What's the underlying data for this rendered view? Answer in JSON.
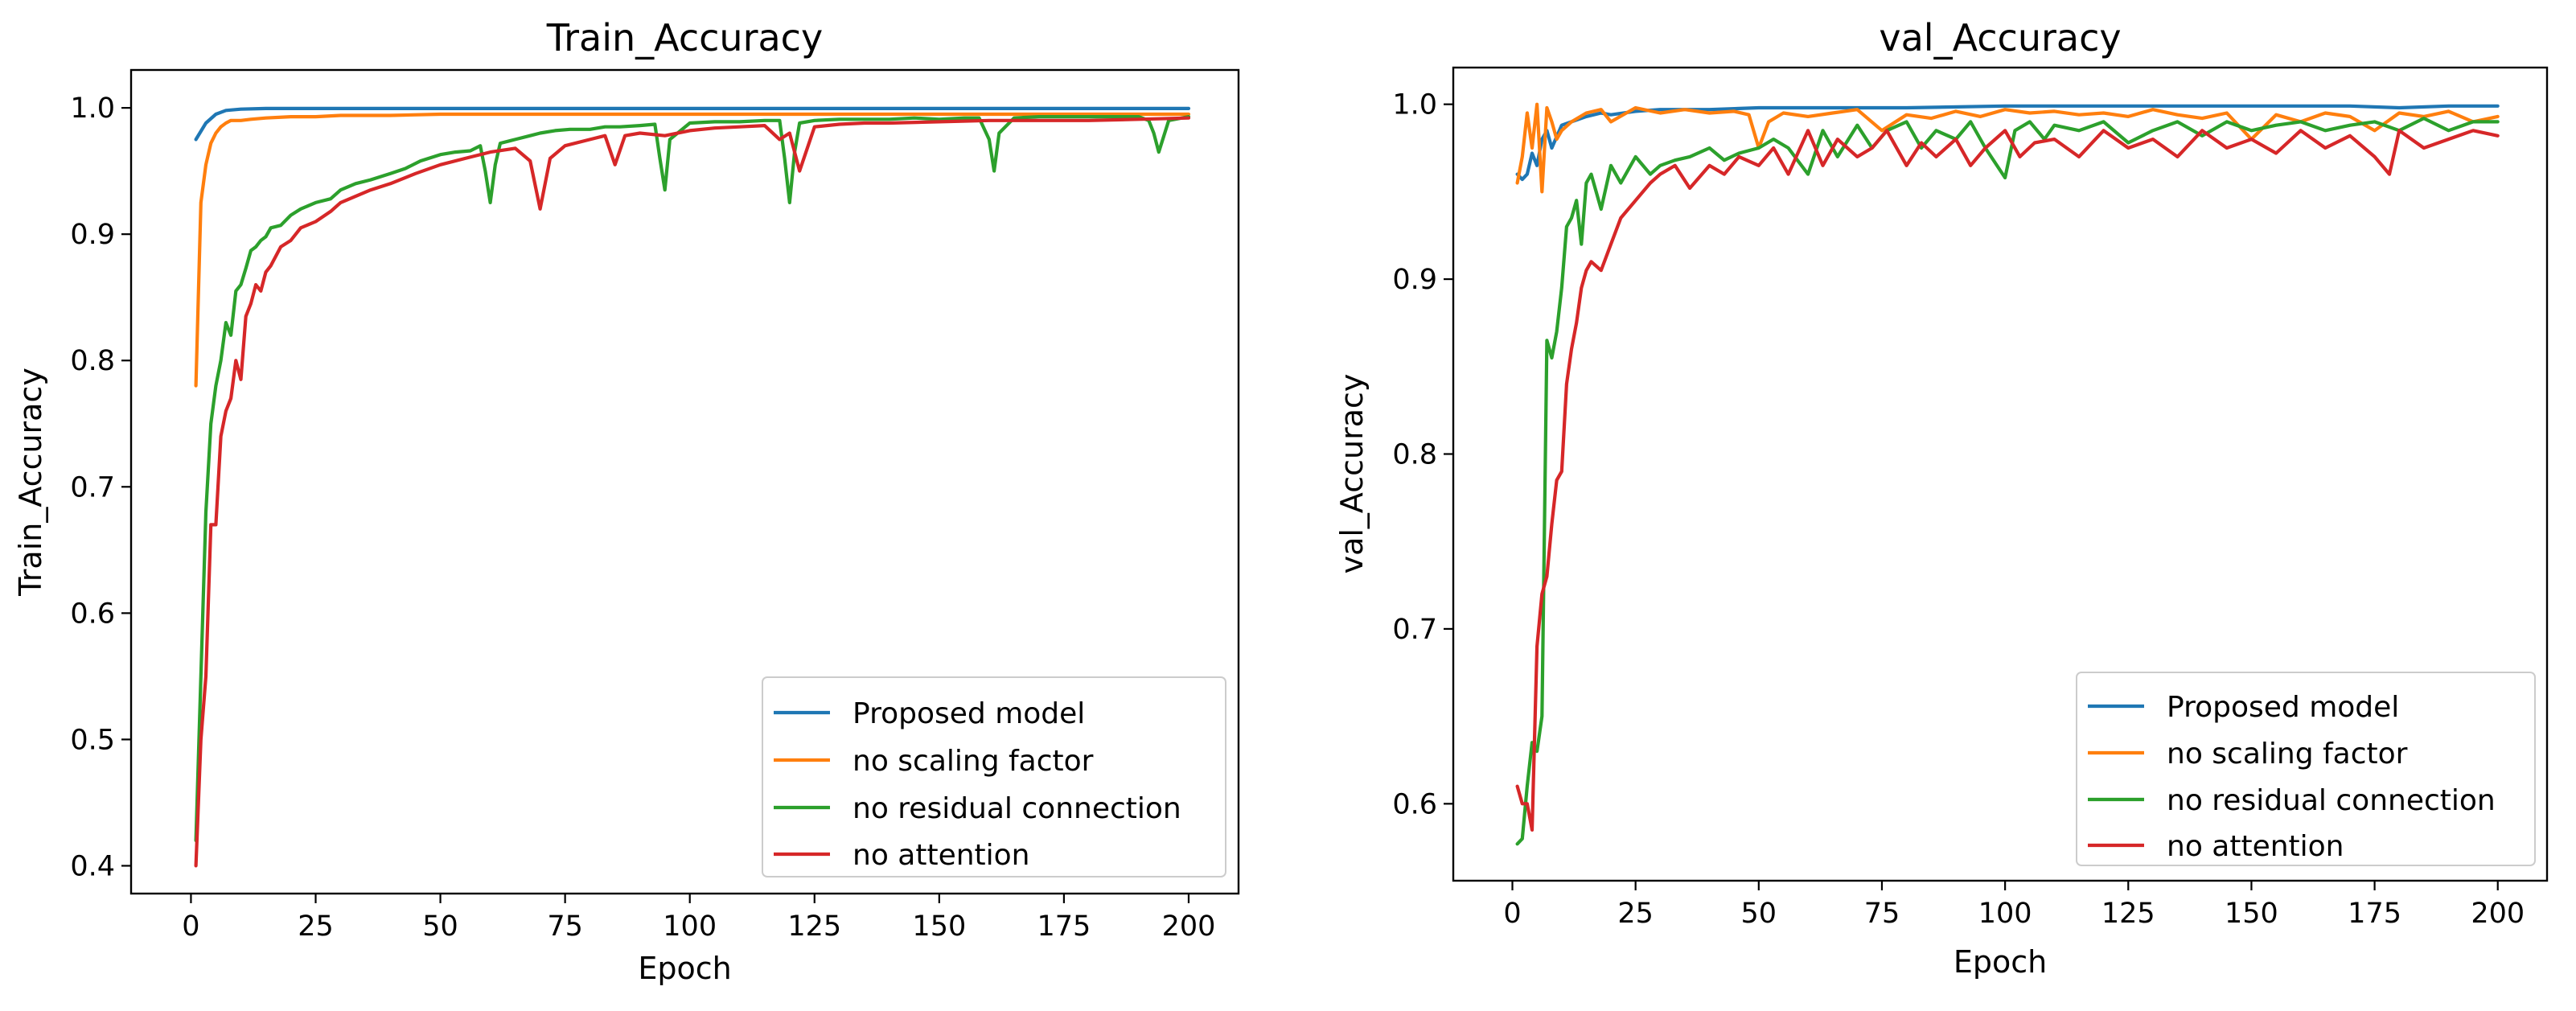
{
  "chart_data": [
    {
      "type": "line",
      "title": "Train_Accuracy",
      "xlabel": "Epoch",
      "ylabel": "Train_Accuracy",
      "xlim": [
        -12,
        210
      ],
      "ylim": [
        0.378,
        1.03
      ],
      "xticks": [
        0,
        25,
        50,
        75,
        100,
        125,
        150,
        175,
        200
      ],
      "yticks": [
        0.4,
        0.5,
        0.6,
        0.7,
        0.8,
        0.9,
        1.0
      ],
      "ytick_decimals": 1,
      "legend_position": "lower-right",
      "grid": false,
      "series": [
        {
          "name": "Proposed model",
          "color": "#1f77b4",
          "x": [
            1,
            3,
            5,
            7,
            10,
            15,
            20,
            30,
            50,
            100,
            150,
            200
          ],
          "y": [
            0.975,
            0.988,
            0.995,
            0.998,
            0.999,
            0.9995,
            0.9995,
            0.9995,
            0.9995,
            0.9995,
            0.9995,
            0.9995
          ]
        },
        {
          "name": "no scaling factor",
          "color": "#ff7f0e",
          "x": [
            1,
            2,
            3,
            4,
            5,
            6,
            7,
            8,
            10,
            12,
            15,
            20,
            25,
            30,
            40,
            50,
            60,
            75,
            100,
            125,
            150,
            175,
            200
          ],
          "y": [
            0.78,
            0.925,
            0.955,
            0.972,
            0.98,
            0.985,
            0.988,
            0.99,
            0.99,
            0.991,
            0.992,
            0.993,
            0.993,
            0.994,
            0.994,
            0.995,
            0.995,
            0.995,
            0.995,
            0.995,
            0.995,
            0.995,
            0.995
          ]
        },
        {
          "name": "no residual connection",
          "color": "#2ca02c",
          "x": [
            1,
            2,
            3,
            4,
            5,
            6,
            7,
            8,
            9,
            10,
            11,
            12,
            13,
            14,
            15,
            16,
            18,
            20,
            22,
            25,
            28,
            30,
            33,
            36,
            40,
            43,
            46,
            50,
            53,
            56,
            58,
            59,
            60,
            61,
            62,
            65,
            68,
            70,
            73,
            76,
            80,
            83,
            86,
            90,
            93,
            94,
            95,
            96,
            100,
            105,
            110,
            115,
            118,
            119,
            120,
            121,
            122,
            125,
            130,
            135,
            140,
            145,
            150,
            155,
            158,
            160,
            161,
            162,
            165,
            170,
            175,
            180,
            185,
            190,
            192,
            193,
            194,
            196,
            200
          ],
          "y": [
            0.42,
            0.55,
            0.68,
            0.75,
            0.78,
            0.8,
            0.83,
            0.82,
            0.855,
            0.86,
            0.873,
            0.887,
            0.89,
            0.895,
            0.898,
            0.905,
            0.907,
            0.915,
            0.92,
            0.925,
            0.928,
            0.935,
            0.94,
            0.943,
            0.948,
            0.952,
            0.958,
            0.963,
            0.965,
            0.966,
            0.97,
            0.95,
            0.925,
            0.955,
            0.972,
            0.975,
            0.978,
            0.98,
            0.982,
            0.983,
            0.983,
            0.985,
            0.985,
            0.986,
            0.987,
            0.96,
            0.935,
            0.975,
            0.988,
            0.989,
            0.989,
            0.99,
            0.99,
            0.96,
            0.925,
            0.965,
            0.988,
            0.99,
            0.991,
            0.991,
            0.991,
            0.992,
            0.991,
            0.992,
            0.992,
            0.975,
            0.95,
            0.98,
            0.992,
            0.993,
            0.993,
            0.993,
            0.993,
            0.993,
            0.99,
            0.98,
            0.965,
            0.99,
            0.993
          ]
        },
        {
          "name": "no attention",
          "color": "#d62728",
          "x": [
            1,
            2,
            3,
            4,
            5,
            6,
            7,
            8,
            9,
            10,
            11,
            12,
            13,
            14,
            15,
            16,
            18,
            20,
            22,
            25,
            28,
            30,
            33,
            36,
            40,
            45,
            50,
            55,
            60,
            65,
            68,
            70,
            72,
            75,
            80,
            83,
            85,
            87,
            90,
            95,
            100,
            105,
            110,
            115,
            118,
            120,
            122,
            125,
            130,
            135,
            140,
            150,
            160,
            170,
            180,
            190,
            200
          ],
          "y": [
            0.4,
            0.5,
            0.55,
            0.67,
            0.67,
            0.74,
            0.76,
            0.77,
            0.8,
            0.785,
            0.835,
            0.845,
            0.86,
            0.855,
            0.87,
            0.875,
            0.89,
            0.895,
            0.905,
            0.91,
            0.918,
            0.925,
            0.93,
            0.935,
            0.94,
            0.948,
            0.955,
            0.96,
            0.965,
            0.968,
            0.958,
            0.92,
            0.96,
            0.97,
            0.975,
            0.978,
            0.955,
            0.978,
            0.98,
            0.978,
            0.982,
            0.984,
            0.985,
            0.986,
            0.975,
            0.98,
            0.95,
            0.985,
            0.987,
            0.988,
            0.988,
            0.989,
            0.99,
            0.99,
            0.99,
            0.991,
            0.992
          ]
        }
      ]
    },
    {
      "type": "line",
      "title": "val_Accuracy",
      "xlabel": "Epoch",
      "ylabel": "val_Accuracy",
      "xlim": [
        -12,
        210
      ],
      "ylim": [
        0.556,
        1.021
      ],
      "xticks": [
        0,
        25,
        50,
        75,
        100,
        125,
        150,
        175,
        200
      ],
      "yticks": [
        0.6,
        0.7,
        0.8,
        0.9,
        1.0
      ],
      "ytick_decimals": 1,
      "legend_position": "lower-right",
      "grid": false,
      "series": [
        {
          "name": "Proposed model",
          "color": "#1f77b4",
          "x": [
            1,
            2,
            3,
            4,
            5,
            6,
            7,
            8,
            10,
            12,
            15,
            18,
            20,
            25,
            30,
            40,
            50,
            60,
            80,
            100,
            120,
            150,
            170,
            180,
            190,
            200
          ],
          "y": [
            0.96,
            0.957,
            0.96,
            0.972,
            0.965,
            0.98,
            0.985,
            0.975,
            0.988,
            0.99,
            0.993,
            0.995,
            0.994,
            0.996,
            0.997,
            0.997,
            0.998,
            0.998,
            0.998,
            0.999,
            0.999,
            0.999,
            0.999,
            0.998,
            0.999,
            0.999
          ]
        },
        {
          "name": "no scaling factor",
          "color": "#ff7f0e",
          "x": [
            1,
            2,
            3,
            4,
            5,
            6,
            7,
            8,
            9,
            10,
            12,
            15,
            18,
            20,
            25,
            30,
            35,
            40,
            45,
            48,
            50,
            52,
            55,
            60,
            65,
            70,
            75,
            80,
            85,
            90,
            95,
            100,
            105,
            110,
            115,
            120,
            125,
            130,
            135,
            140,
            145,
            150,
            155,
            160,
            165,
            170,
            175,
            180,
            185,
            190,
            195,
            200
          ],
          "y": [
            0.955,
            0.97,
            0.995,
            0.975,
            1.0,
            0.95,
            0.998,
            0.99,
            0.98,
            0.985,
            0.99,
            0.995,
            0.997,
            0.99,
            0.998,
            0.995,
            0.997,
            0.995,
            0.996,
            0.994,
            0.975,
            0.99,
            0.995,
            0.993,
            0.995,
            0.997,
            0.985,
            0.994,
            0.992,
            0.996,
            0.993,
            0.997,
            0.995,
            0.996,
            0.994,
            0.995,
            0.993,
            0.997,
            0.994,
            0.992,
            0.995,
            0.98,
            0.994,
            0.99,
            0.995,
            0.993,
            0.985,
            0.995,
            0.993,
            0.996,
            0.99,
            0.993
          ]
        },
        {
          "name": "no residual connection",
          "color": "#2ca02c",
          "x": [
            1,
            2,
            3,
            4,
            5,
            6,
            7,
            8,
            9,
            10,
            11,
            12,
            13,
            14,
            15,
            16,
            18,
            20,
            22,
            25,
            28,
            30,
            33,
            36,
            40,
            43,
            46,
            50,
            53,
            56,
            60,
            63,
            66,
            70,
            73,
            76,
            80,
            83,
            86,
            90,
            93,
            96,
            100,
            102,
            105,
            108,
            110,
            115,
            120,
            125,
            130,
            135,
            140,
            145,
            150,
            155,
            160,
            165,
            170,
            175,
            180,
            185,
            190,
            195,
            200
          ],
          "y": [
            0.577,
            0.58,
            0.61,
            0.635,
            0.63,
            0.65,
            0.865,
            0.855,
            0.87,
            0.895,
            0.93,
            0.935,
            0.945,
            0.92,
            0.955,
            0.96,
            0.94,
            0.965,
            0.955,
            0.97,
            0.96,
            0.965,
            0.968,
            0.97,
            0.975,
            0.968,
            0.972,
            0.975,
            0.98,
            0.975,
            0.96,
            0.985,
            0.97,
            0.988,
            0.975,
            0.985,
            0.99,
            0.975,
            0.985,
            0.98,
            0.99,
            0.975,
            0.958,
            0.985,
            0.99,
            0.98,
            0.988,
            0.985,
            0.99,
            0.978,
            0.985,
            0.99,
            0.982,
            0.99,
            0.985,
            0.988,
            0.99,
            0.985,
            0.988,
            0.99,
            0.985,
            0.992,
            0.985,
            0.99,
            0.99
          ]
        },
        {
          "name": "no attention",
          "color": "#d62728",
          "x": [
            1,
            2,
            3,
            4,
            5,
            6,
            7,
            8,
            9,
            10,
            11,
            12,
            13,
            14,
            15,
            16,
            18,
            20,
            22,
            25,
            28,
            30,
            33,
            36,
            40,
            43,
            46,
            50,
            53,
            56,
            60,
            63,
            66,
            70,
            73,
            76,
            80,
            83,
            86,
            90,
            93,
            96,
            100,
            103,
            106,
            110,
            115,
            120,
            125,
            130,
            135,
            140,
            145,
            150,
            155,
            160,
            165,
            170,
            175,
            178,
            180,
            185,
            190,
            195,
            200
          ],
          "y": [
            0.61,
            0.6,
            0.6,
            0.585,
            0.69,
            0.72,
            0.73,
            0.76,
            0.785,
            0.79,
            0.84,
            0.86,
            0.875,
            0.895,
            0.905,
            0.91,
            0.905,
            0.92,
            0.935,
            0.945,
            0.955,
            0.96,
            0.965,
            0.952,
            0.965,
            0.96,
            0.97,
            0.965,
            0.975,
            0.96,
            0.985,
            0.965,
            0.98,
            0.97,
            0.975,
            0.985,
            0.965,
            0.978,
            0.97,
            0.98,
            0.965,
            0.975,
            0.985,
            0.97,
            0.978,
            0.98,
            0.97,
            0.985,
            0.975,
            0.98,
            0.97,
            0.985,
            0.975,
            0.98,
            0.972,
            0.985,
            0.975,
            0.982,
            0.97,
            0.96,
            0.985,
            0.975,
            0.98,
            0.985,
            0.982
          ]
        }
      ]
    }
  ]
}
